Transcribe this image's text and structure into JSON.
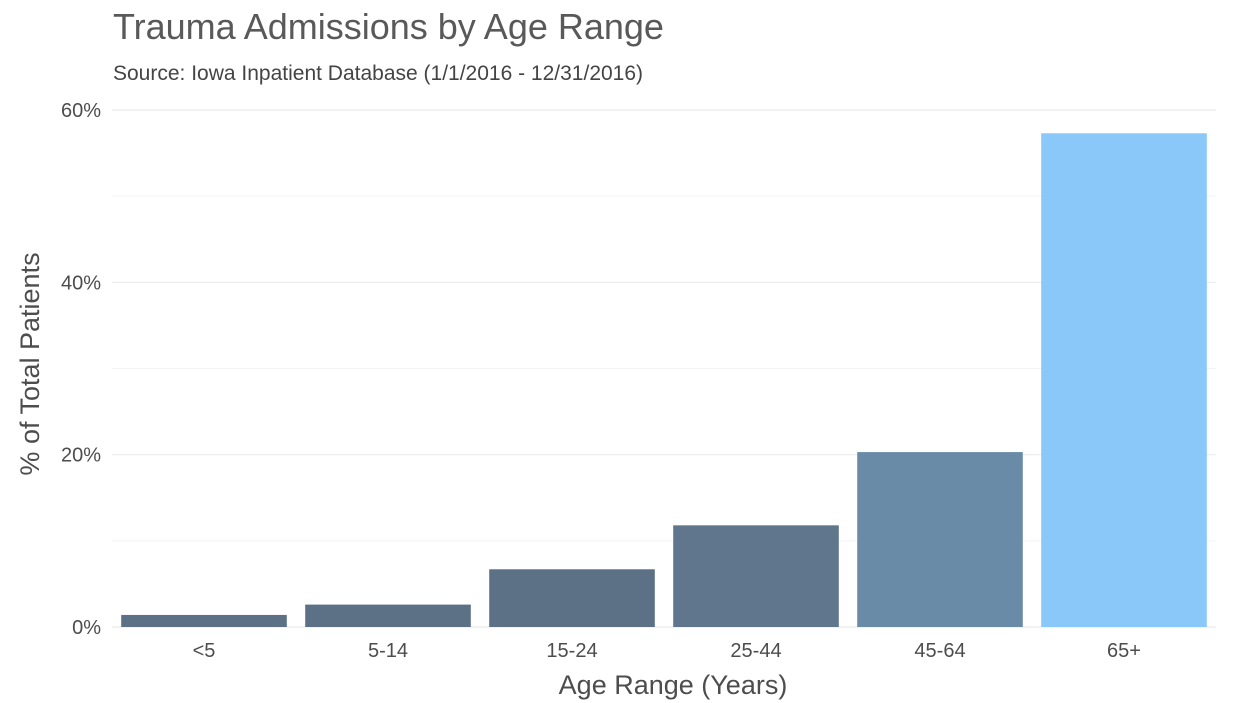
{
  "chart_data": {
    "type": "bar",
    "title": "Trauma Admissions by Age Range",
    "subtitle": "Source: Iowa Inpatient Database (1/1/2016 - 12/31/2016)",
    "xlabel": "Age Range (Years)",
    "ylabel": "% of Total Patients",
    "categories": [
      "<5",
      "5-14",
      "15-24",
      "25-44",
      "45-64",
      "65+"
    ],
    "values": [
      1.4,
      2.6,
      6.7,
      11.8,
      20.3,
      57.3
    ],
    "colors": [
      "#5c7186",
      "#5c7186",
      "#5c7186",
      "#5f768c",
      "#6a8ba8",
      "#89c8f8"
    ],
    "ylim": [
      0,
      60
    ],
    "yticks": [
      0,
      20,
      40,
      60
    ],
    "ytick_labels": [
      "0%",
      "20%",
      "40%",
      "60%"
    ],
    "grid": true,
    "legend": "none"
  }
}
